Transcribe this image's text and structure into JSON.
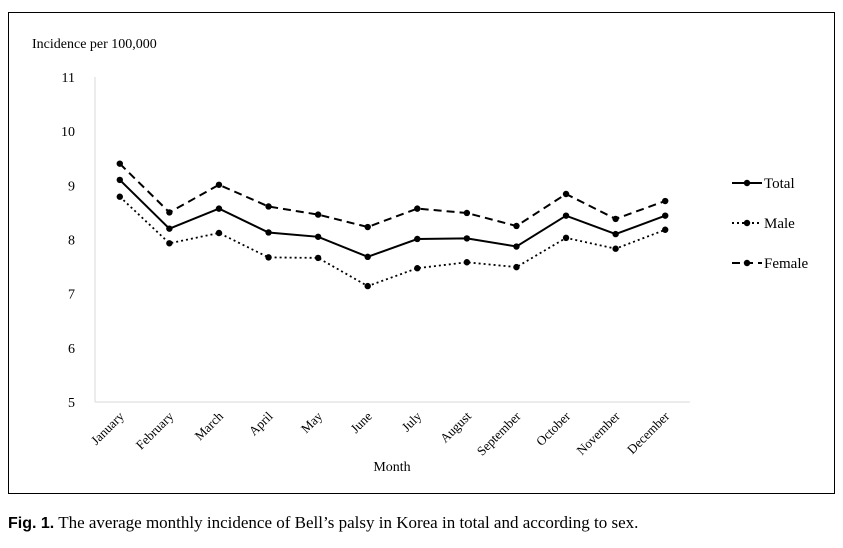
{
  "caption": {
    "label": "Fig. 1.",
    "text": "The average monthly incidence of Bell’s palsy in Korea in total and according to sex."
  },
  "chart_data": {
    "type": "line",
    "ylabel": "Incidence per 100,000",
    "xlabel": "Month",
    "ylim": [
      5,
      11
    ],
    "yticks": [
      5,
      6,
      7,
      8,
      9,
      10,
      11
    ],
    "grid": false,
    "legend_position": "right",
    "categories": [
      "January",
      "February",
      "March",
      "April",
      "May",
      "June",
      "July",
      "August",
      "September",
      "October",
      "November",
      "December"
    ],
    "series": [
      {
        "name": "Total",
        "style": "solid",
        "color": "#000000",
        "values": [
          9.1,
          8.2,
          8.57,
          8.13,
          8.05,
          7.68,
          8.01,
          8.02,
          7.87,
          8.44,
          8.1,
          8.44
        ]
      },
      {
        "name": "Male",
        "style": "dotted",
        "color": "#000000",
        "values": [
          8.79,
          7.93,
          8.12,
          7.67,
          7.66,
          7.14,
          7.47,
          7.58,
          7.49,
          8.03,
          7.83,
          8.18
        ]
      },
      {
        "name": "Female",
        "style": "dashed",
        "color": "#000000",
        "values": [
          9.4,
          8.5,
          9.01,
          8.61,
          8.46,
          8.23,
          8.57,
          8.49,
          8.25,
          8.84,
          8.38,
          8.71
        ]
      }
    ]
  }
}
